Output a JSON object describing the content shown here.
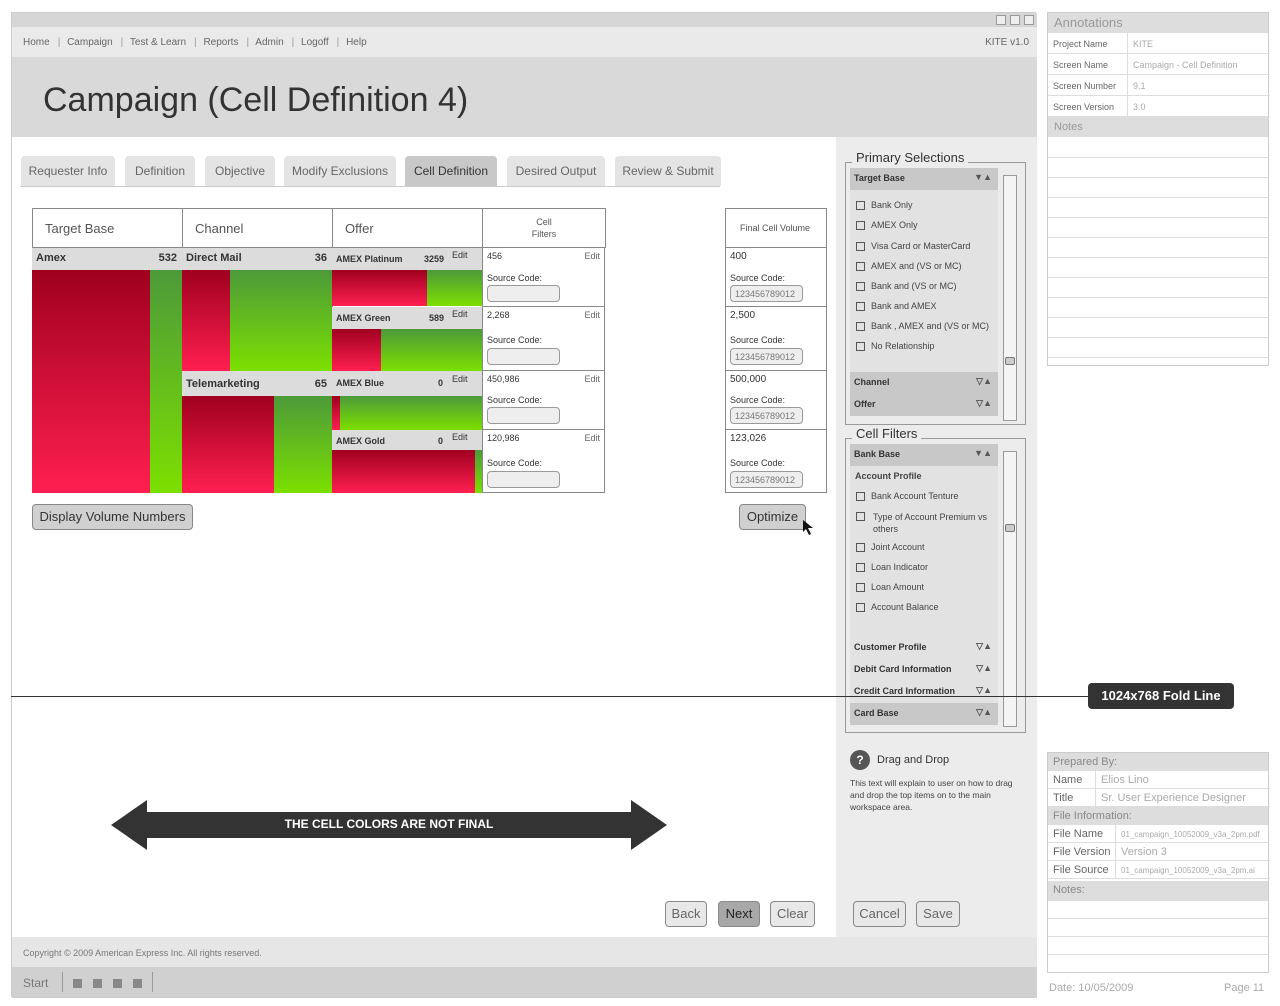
{
  "nav": {
    "links": [
      "Home",
      "Campaign",
      "Test & Learn",
      "Reports",
      "Admin",
      "Logoff",
      "Help"
    ],
    "version": "KITE v1.0"
  },
  "page_title": "Campaign (Cell Definition 4)",
  "tabs": [
    "Requester Info",
    "Definition",
    "Objective",
    "Modify Exclusions",
    "Cell Definition",
    "Desired Output",
    "Review & Submit"
  ],
  "grid": {
    "headers": {
      "target": "Target Base",
      "channel": "Channel",
      "offer": "Offer",
      "filters": "Cell Filters",
      "volume": "Final Cell Volume"
    },
    "target": {
      "label": "Amex",
      "count": "532"
    },
    "channels": [
      {
        "label": "Direct Mail",
        "count": "36"
      },
      {
        "label": "Telemarketing",
        "count": "65"
      }
    ],
    "offers": [
      {
        "label": "AMEX Platinum",
        "count": "3259",
        "edit": "Edit"
      },
      {
        "label": "AMEX Green",
        "count": "589",
        "edit": "Edit"
      },
      {
        "label": "AMEX Blue",
        "count": "0",
        "edit": "Edit"
      },
      {
        "label": "AMEX Gold",
        "count": "0",
        "edit": "Edit"
      }
    ],
    "filters": [
      {
        "value": "456",
        "edit": "Edit",
        "source_label": "Source Code:"
      },
      {
        "value": "2,268",
        "edit": "Edit",
        "source_label": "Source Code:"
      },
      {
        "value": "450,986",
        "edit": "Edit",
        "source_label": "Source Code:"
      },
      {
        "value": "120,986",
        "edit": "Edit",
        "source_label": "Source Code:"
      }
    ],
    "volumes": [
      {
        "value": "400",
        "source_label": "Source Code:",
        "code": "123456789012"
      },
      {
        "value": "2,500",
        "source_label": "Source Code:",
        "code": "123456789012"
      },
      {
        "value": "500,000",
        "source_label": "Source Code:",
        "code": "123456789012"
      },
      {
        "value": "123,026",
        "source_label": "Source Code:",
        "code": "123456789012"
      }
    ]
  },
  "buttons": {
    "display_volume": "Display Volume Numbers",
    "optimize": "Optimize",
    "back": "Back",
    "next": "Next",
    "clear": "Clear",
    "cancel": "Cancel",
    "save": "Save"
  },
  "fold_label": "1024x768 Fold Line",
  "callout": "THE CELL COLORS ARE NOT FINAL",
  "primary": {
    "title": "Primary Selections",
    "target_head": "Target Base",
    "items": [
      "Bank Only",
      "AMEX Only",
      "Visa Card or MasterCard",
      "AMEX and (VS or MC)",
      "Bank and (VS or MC)",
      "Bank and AMEX",
      "Bank , AMEX and (VS or MC)",
      "No Relationship"
    ],
    "channel_head": "Channel",
    "offer_head": "Offer"
  },
  "cell_filters": {
    "title": "Cell Filters",
    "bank_head": "Bank Base",
    "sub_head": "Account Profile",
    "items": [
      "Bank Account Tenture",
      "Type of Account Premium vs others",
      "Joint Account",
      "Loan Indicator",
      "Loan Amount",
      "Account Balance"
    ],
    "customer_head": "Customer Profile",
    "debit_head": "Debit Card Information",
    "credit_head": "Credit Card Information",
    "card_head": "Card Base"
  },
  "help": {
    "icon": "?",
    "title": "Drag and Drop",
    "text": "This text will explain to user on how to drag and drop the top items on to the main workspace area."
  },
  "footer": "Copyright © 2009 American Express Inc. All rights reserved.",
  "taskbar": {
    "start": "Start"
  },
  "annotations": {
    "title": "Annotations",
    "rows": [
      {
        "k": "Project Name",
        "v": "KITE"
      },
      {
        "k": "Screen Name",
        "v": "Campaign - Cell Definition"
      },
      {
        "k": "Screen Number",
        "v": "9.1"
      },
      {
        "k": "Screen Version",
        "v": "3.0"
      }
    ],
    "notes": "Notes"
  },
  "prepared": {
    "title": "Prepared By:",
    "name_k": "Name",
    "name_v": "Elios Lino",
    "title_k": "Title",
    "title_v": "Sr. User Experience Designer",
    "file_info": "File Information:",
    "fname_k": "File Name",
    "fname_v": "01_campaign_10052009_v3a_2pm.pdf",
    "fver_k": "File Version",
    "fver_v": "Version 3",
    "fsrc_k": "File Source",
    "fsrc_v": "01_campaign_10052009_v3a_2pm.ai",
    "notes": "Notes:",
    "date": "Date: 10/05/2009",
    "page": "Page  11"
  }
}
